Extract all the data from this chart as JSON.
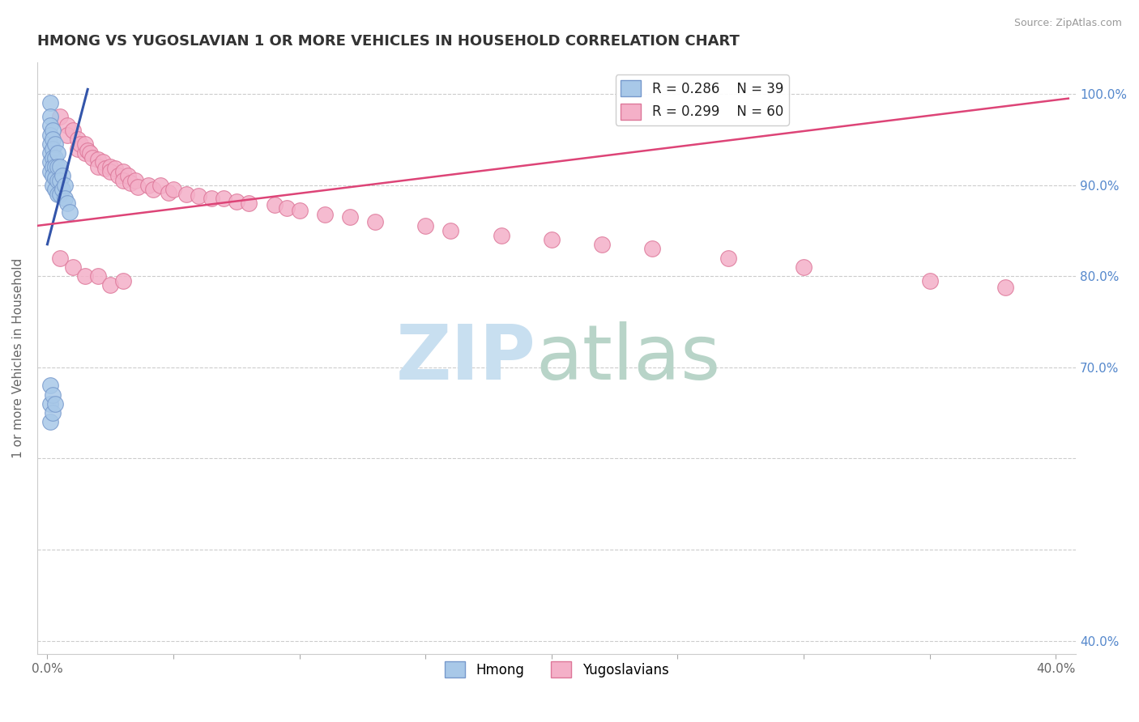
{
  "title": "HMONG VS YUGOSLAVIAN 1 OR MORE VEHICLES IN HOUSEHOLD CORRELATION CHART",
  "source": "Source: ZipAtlas.com",
  "ylabel": "1 or more Vehicles in Household",
  "hmong_color": "#a8c8e8",
  "yugoslavian_color": "#f4b0c8",
  "hmong_edge_color": "#7799cc",
  "yugoslavian_edge_color": "#dd7799",
  "hmong_line_color": "#3355aa",
  "yugoslavian_line_color": "#dd4477",
  "legend_label_hmong": "Hmong",
  "legend_label_yugoslavian": "Yugoslavians",
  "watermark_zip": "ZIP",
  "watermark_atlas": "atlas",
  "hmong_x": [
    0.001,
    0.001,
    0.001,
    0.001,
    0.001,
    0.001,
    0.001,
    0.001,
    0.002,
    0.002,
    0.002,
    0.002,
    0.002,
    0.002,
    0.002,
    0.003,
    0.003,
    0.003,
    0.003,
    0.003,
    0.004,
    0.004,
    0.004,
    0.004,
    0.005,
    0.005,
    0.005,
    0.006,
    0.006,
    0.007,
    0.007,
    0.008,
    0.009,
    0.001,
    0.001,
    0.001,
    0.002,
    0.002,
    0.003
  ],
  "hmong_y": [
    0.99,
    0.975,
    0.965,
    0.955,
    0.945,
    0.935,
    0.925,
    0.915,
    0.96,
    0.95,
    0.94,
    0.93,
    0.92,
    0.91,
    0.9,
    0.945,
    0.93,
    0.92,
    0.908,
    0.895,
    0.935,
    0.92,
    0.905,
    0.89,
    0.92,
    0.905,
    0.89,
    0.91,
    0.895,
    0.9,
    0.885,
    0.88,
    0.87,
    0.68,
    0.66,
    0.64,
    0.67,
    0.65,
    0.66
  ],
  "hmong_line_x": [
    0.0,
    0.016
  ],
  "hmong_line_y": [
    0.835,
    1.005
  ],
  "yugoslavian_x": [
    0.005,
    0.008,
    0.008,
    0.01,
    0.012,
    0.012,
    0.013,
    0.015,
    0.015,
    0.016,
    0.017,
    0.018,
    0.02,
    0.02,
    0.022,
    0.023,
    0.025,
    0.025,
    0.027,
    0.028,
    0.03,
    0.03,
    0.032,
    0.033,
    0.035,
    0.036,
    0.04,
    0.042,
    0.045,
    0.048,
    0.05,
    0.055,
    0.06,
    0.065,
    0.07,
    0.075,
    0.08,
    0.09,
    0.095,
    0.1,
    0.11,
    0.12,
    0.13,
    0.15,
    0.16,
    0.18,
    0.2,
    0.22,
    0.24,
    0.27,
    0.3,
    0.35,
    0.38,
    0.005,
    0.01,
    0.015,
    0.02,
    0.025,
    0.03
  ],
  "yugoslavian_y": [
    0.975,
    0.965,
    0.955,
    0.96,
    0.95,
    0.94,
    0.945,
    0.935,
    0.945,
    0.938,
    0.935,
    0.93,
    0.928,
    0.92,
    0.925,
    0.918,
    0.92,
    0.915,
    0.918,
    0.91,
    0.915,
    0.905,
    0.91,
    0.902,
    0.905,
    0.898,
    0.9,
    0.895,
    0.9,
    0.892,
    0.895,
    0.89,
    0.888,
    0.885,
    0.885,
    0.882,
    0.88,
    0.878,
    0.875,
    0.872,
    0.868,
    0.865,
    0.86,
    0.855,
    0.85,
    0.845,
    0.84,
    0.835,
    0.83,
    0.82,
    0.81,
    0.795,
    0.788,
    0.82,
    0.81,
    0.8,
    0.8,
    0.79,
    0.795
  ],
  "yugo_line_x": [
    -0.005,
    0.405
  ],
  "yugo_line_y": [
    0.855,
    0.995
  ],
  "xlim": [
    -0.004,
    0.408
  ],
  "ylim": [
    0.385,
    1.035
  ],
  "x_tick_positions": [
    0.0,
    0.05,
    0.1,
    0.15,
    0.2,
    0.25,
    0.3,
    0.35,
    0.4
  ],
  "x_tick_labels": [
    "0.0%",
    "",
    "",
    "",
    "",
    "",
    "",
    "",
    "40.0%"
  ],
  "y_tick_positions": [
    0.4,
    0.5,
    0.6,
    0.7,
    0.8,
    0.9,
    1.0
  ],
  "y_tick_labels_right": [
    "40.0%",
    "",
    "",
    "70.0%",
    "80.0%",
    "90.0%",
    "100.0%"
  ]
}
